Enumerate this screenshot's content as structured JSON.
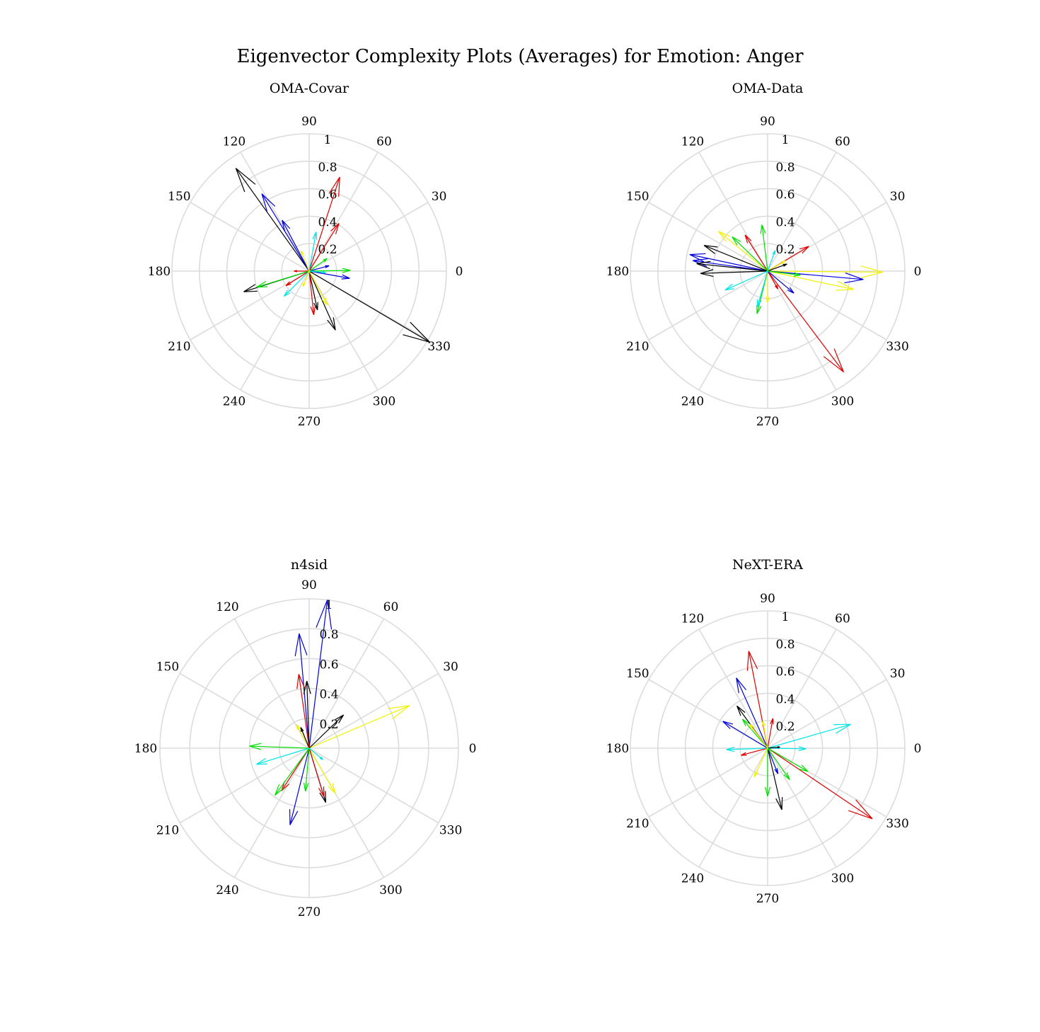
{
  "title": "Eigenvector Complexity Plots (Averages) for Emotion: Anger",
  "colors": {
    "black": "#000000",
    "red": "#dd0000",
    "green": "#00e000",
    "blue": "#0000dd",
    "cyan": "#00e5e5",
    "yellow": "#f2f200"
  },
  "chart_data": [
    {
      "type": "compass",
      "title": "OMA-Covar",
      "r_max": 1,
      "radial_ticks": [
        "0.2",
        "0.4",
        "0.6",
        "0.8",
        "1"
      ],
      "angle_ticks": [
        "0",
        "30",
        "60",
        "90",
        "120",
        "150",
        "180",
        "210",
        "240",
        "270",
        "300",
        "330"
      ],
      "vectors": [
        {
          "color": "black",
          "r": 1.02,
          "angle": 329.5
        },
        {
          "color": "black",
          "r": 0.92,
          "angle": 125.5
        },
        {
          "color": "black",
          "r": 0.5,
          "angle": 197.5
        },
        {
          "color": "black",
          "r": 0.47,
          "angle": 294
        },
        {
          "color": "black",
          "r": 0.29,
          "angle": 282
        },
        {
          "color": "blue",
          "r": 0.66,
          "angle": 121.5
        },
        {
          "color": "blue",
          "r": 0.42,
          "angle": 118
        },
        {
          "color": "blue",
          "r": 0.3,
          "angle": 350
        },
        {
          "color": "blue",
          "r": 0.15,
          "angle": 15
        },
        {
          "color": "red",
          "r": 0.72,
          "angle": 72
        },
        {
          "color": "red",
          "r": 0.41,
          "angle": 58
        },
        {
          "color": "red",
          "r": 0.32,
          "angle": 276
        },
        {
          "color": "red",
          "r": 0.2,
          "angle": 212
        },
        {
          "color": "red",
          "r": 0.11,
          "angle": 180
        },
        {
          "color": "green",
          "r": 0.3,
          "angle": 1
        },
        {
          "color": "green",
          "r": 0.4,
          "angle": 197
        },
        {
          "color": "green",
          "r": 0.16,
          "angle": 35
        },
        {
          "color": "cyan",
          "r": 0.29,
          "angle": 80
        },
        {
          "color": "cyan",
          "r": 0.26,
          "angle": 225
        },
        {
          "color": "cyan",
          "r": 0.12,
          "angle": 355
        },
        {
          "color": "yellow",
          "r": 0.28,
          "angle": 298
        },
        {
          "color": "yellow",
          "r": 0.16,
          "angle": 112
        },
        {
          "color": "yellow",
          "r": 0.12,
          "angle": 248
        }
      ]
    },
    {
      "type": "compass",
      "title": "OMA-Data",
      "r_max": 1,
      "radial_ticks": [
        "0.2",
        "0.4",
        "0.6",
        "0.8",
        "1"
      ],
      "angle_ticks": [
        "0",
        "30",
        "60",
        "90",
        "120",
        "150",
        "180",
        "210",
        "240",
        "270",
        "300",
        "330"
      ],
      "vectors": [
        {
          "color": "red",
          "r": 0.92,
          "angle": 307
        },
        {
          "color": "red",
          "r": 0.35,
          "angle": 31
        },
        {
          "color": "red",
          "r": 0.31,
          "angle": 122
        },
        {
          "color": "red",
          "r": 0.15,
          "angle": 300
        },
        {
          "color": "yellow",
          "r": 0.84,
          "angle": 359.5
        },
        {
          "color": "yellow",
          "r": 0.64,
          "angle": 348
        },
        {
          "color": "yellow",
          "r": 0.46,
          "angle": 141
        },
        {
          "color": "yellow",
          "r": 0.23,
          "angle": 270
        },
        {
          "color": "yellow",
          "r": 0.15,
          "angle": 30
        },
        {
          "color": "blue",
          "r": 0.7,
          "angle": 355
        },
        {
          "color": "blue",
          "r": 0.58,
          "angle": 168
        },
        {
          "color": "blue",
          "r": 0.55,
          "angle": 172
        },
        {
          "color": "blue",
          "r": 0.25,
          "angle": 320
        },
        {
          "color": "black",
          "r": 0.5,
          "angle": 158
        },
        {
          "color": "black",
          "r": 0.52,
          "angle": 174
        },
        {
          "color": "black",
          "r": 0.49,
          "angle": 182
        },
        {
          "color": "black",
          "r": 0.15,
          "angle": 20
        },
        {
          "color": "green",
          "r": 0.34,
          "angle": 97
        },
        {
          "color": "green",
          "r": 0.36,
          "angle": 136
        },
        {
          "color": "green",
          "r": 0.32,
          "angle": 256
        },
        {
          "color": "green",
          "r": 0.24,
          "angle": 353
        },
        {
          "color": "cyan",
          "r": 0.34,
          "angle": 204
        },
        {
          "color": "cyan",
          "r": 0.27,
          "angle": 254
        },
        {
          "color": "cyan",
          "r": 0.16,
          "angle": 70
        }
      ]
    },
    {
      "type": "compass",
      "title": "n4sid",
      "r_max": 1,
      "radial_ticks": [
        "0.2",
        "0.4",
        "0.6",
        "0.8",
        "1"
      ],
      "angle_ticks": [
        "0",
        "30",
        "60",
        "90",
        "120",
        "150",
        "180",
        "210",
        "240",
        "270",
        "300",
        "330"
      ],
      "vectors": [
        {
          "color": "blue",
          "r": 1.0,
          "angle": 83
        },
        {
          "color": "blue",
          "r": 0.77,
          "angle": 95
        },
        {
          "color": "blue",
          "r": 0.53,
          "angle": 256
        },
        {
          "color": "yellow",
          "r": 0.73,
          "angle": 23
        },
        {
          "color": "yellow",
          "r": 0.35,
          "angle": 300
        },
        {
          "color": "yellow",
          "r": 0.18,
          "angle": 118
        },
        {
          "color": "black",
          "r": 0.45,
          "angle": 92
        },
        {
          "color": "black",
          "r": 0.32,
          "angle": 44
        },
        {
          "color": "black",
          "r": 0.38,
          "angle": 287
        },
        {
          "color": "black",
          "r": 0.15,
          "angle": 112
        },
        {
          "color": "red",
          "r": 0.5,
          "angle": 98
        },
        {
          "color": "red",
          "r": 0.34,
          "angle": 287
        },
        {
          "color": "red",
          "r": 0.34,
          "angle": 237
        },
        {
          "color": "green",
          "r": 0.39,
          "angle": 234
        },
        {
          "color": "green",
          "r": 0.4,
          "angle": 178
        },
        {
          "color": "green",
          "r": 0.29,
          "angle": 265
        },
        {
          "color": "cyan",
          "r": 0.37,
          "angle": 197
        },
        {
          "color": "cyan",
          "r": 0.12,
          "angle": 320
        }
      ]
    },
    {
      "type": "compass",
      "title": "NeXT-ERA",
      "r_max": 1,
      "radial_ticks": [
        "0.2",
        "0.4",
        "0.6",
        "0.8",
        "1"
      ],
      "angle_ticks": [
        "0",
        "30",
        "60",
        "90",
        "120",
        "150",
        "180",
        "210",
        "240",
        "270",
        "300",
        "330"
      ],
      "vectors": [
        {
          "color": "red",
          "r": 0.92,
          "angle": 326
        },
        {
          "color": "red",
          "r": 0.72,
          "angle": 101
        },
        {
          "color": "red",
          "r": 0.22,
          "angle": 80
        },
        {
          "color": "red",
          "r": 0.2,
          "angle": 195
        },
        {
          "color": "cyan",
          "r": 0.63,
          "angle": 16
        },
        {
          "color": "cyan",
          "r": 0.3,
          "angle": 182
        },
        {
          "color": "cyan",
          "r": 0.28,
          "angle": 359
        },
        {
          "color": "blue",
          "r": 0.56,
          "angle": 114
        },
        {
          "color": "blue",
          "r": 0.38,
          "angle": 149
        },
        {
          "color": "blue",
          "r": 0.2,
          "angle": 292
        },
        {
          "color": "black",
          "r": 0.46,
          "angle": 283
        },
        {
          "color": "black",
          "r": 0.38,
          "angle": 126
        },
        {
          "color": "black",
          "r": 0.09,
          "angle": 5
        },
        {
          "color": "green",
          "r": 0.34,
          "angle": 330
        },
        {
          "color": "green",
          "r": 0.35,
          "angle": 270
        },
        {
          "color": "green",
          "r": 0.28,
          "angle": 131
        },
        {
          "color": "green",
          "r": 0.28,
          "angle": 305
        },
        {
          "color": "yellow",
          "r": 0.23,
          "angle": 245
        },
        {
          "color": "yellow",
          "r": 0.2,
          "angle": 100
        },
        {
          "color": "yellow",
          "r": 0.22,
          "angle": 127
        }
      ]
    }
  ]
}
